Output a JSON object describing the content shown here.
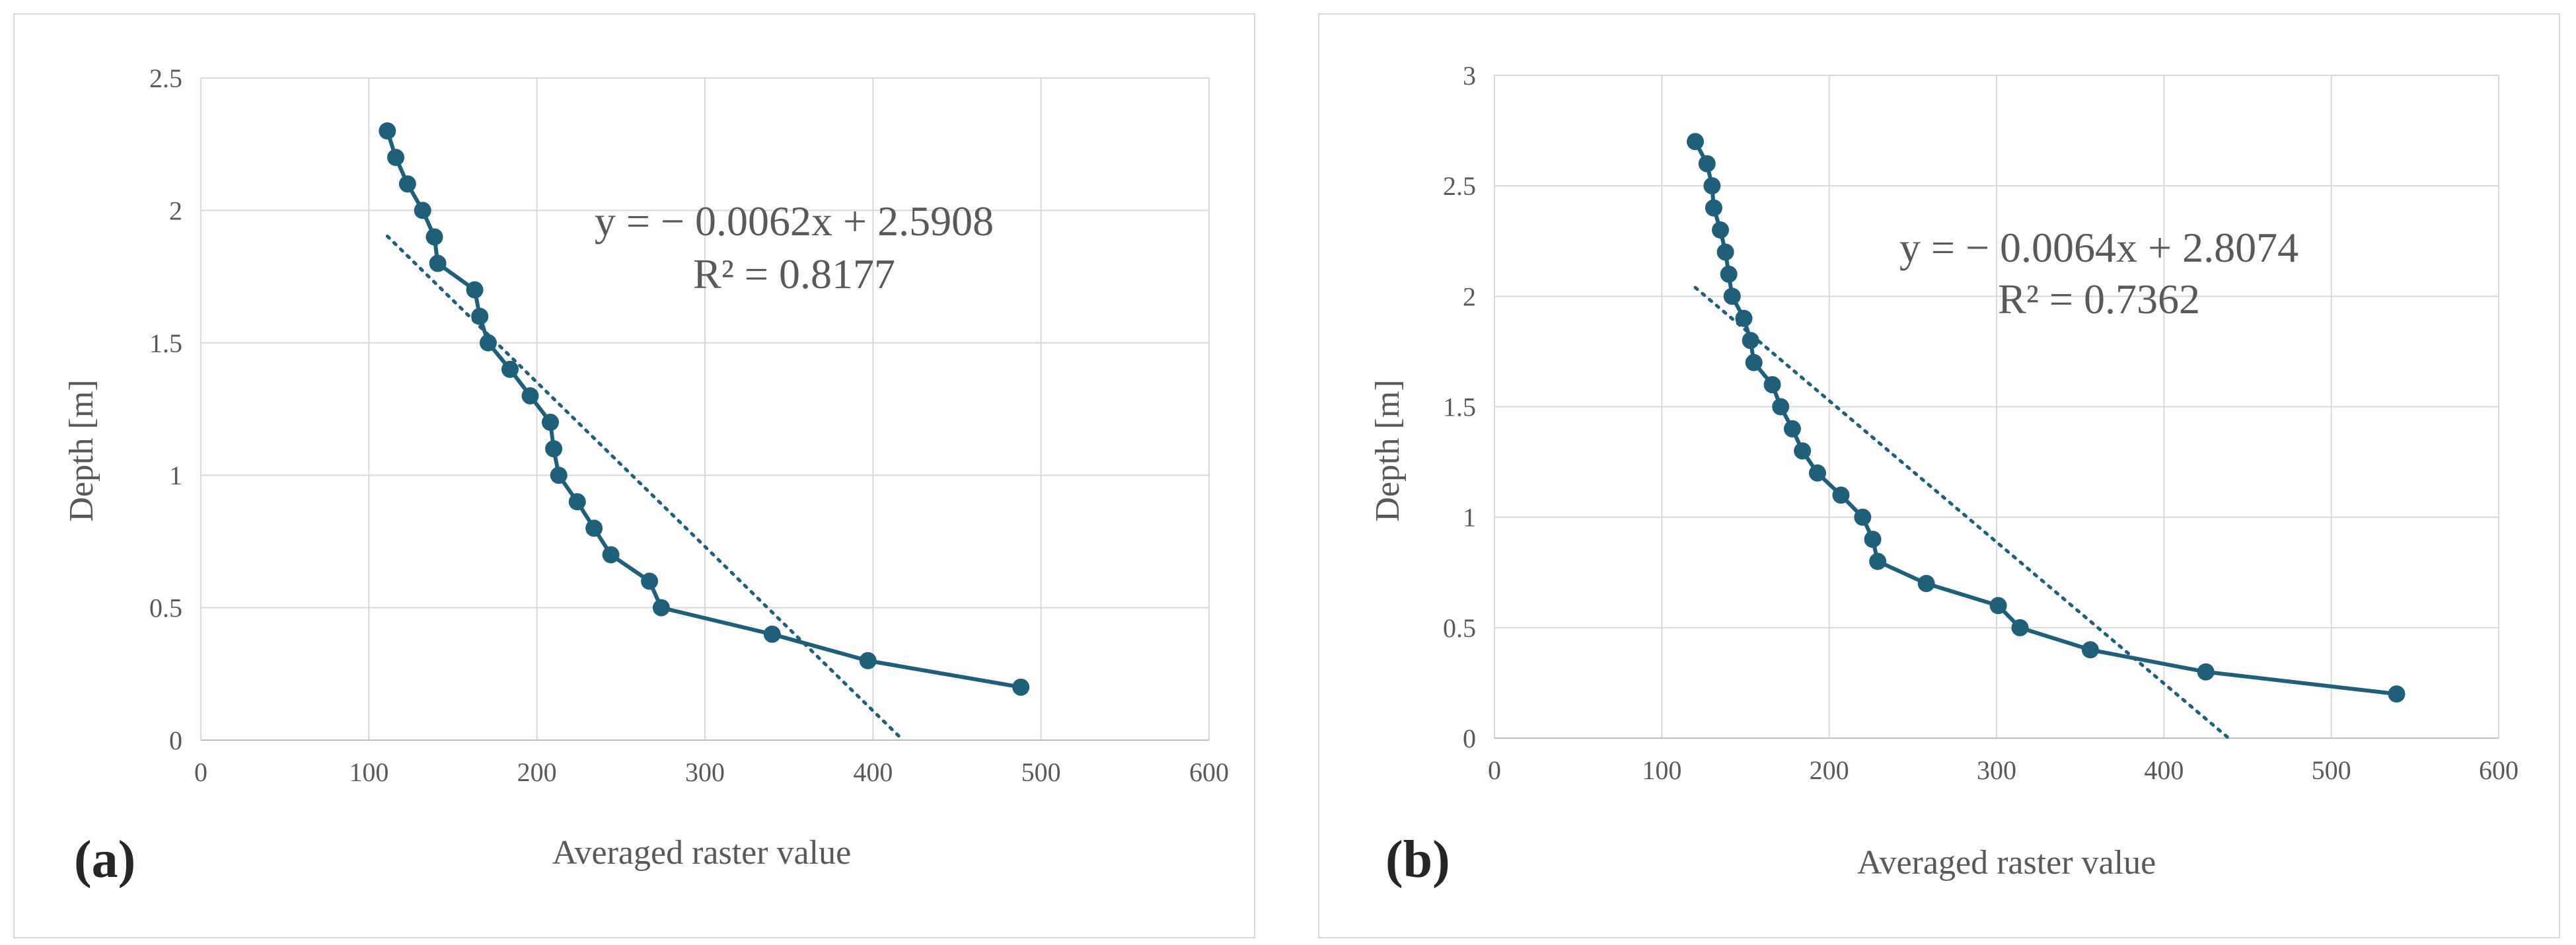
{
  "colors": {
    "series": "#1f5f7a",
    "grid": "#d9d9d9",
    "text": "#595959",
    "border": "#d9d9d9"
  },
  "chart_data": [
    {
      "type": "line",
      "panel_label": "(a)",
      "xlabel": "Averaged raster value",
      "ylabel": "Depth [m]",
      "xlim": [
        0,
        600
      ],
      "ylim": [
        0,
        2.5
      ],
      "x_ticks": [
        "0",
        "100",
        "200",
        "300",
        "400",
        "500",
        "600"
      ],
      "y_ticks": [
        "0",
        "0.5",
        "1",
        "1.5",
        "2",
        "2.5"
      ],
      "series": [
        {
          "name": "Depth",
          "x": [
            111,
            116,
            123,
            132,
            139,
            141,
            163,
            166,
            171,
            184,
            196,
            208,
            210,
            213,
            224,
            234,
            244,
            267,
            274,
            340,
            397,
            488
          ],
          "y": [
            2.3,
            2.2,
            2.1,
            2.0,
            1.9,
            1.8,
            1.7,
            1.6,
            1.5,
            1.4,
            1.3,
            1.2,
            1.1,
            1.0,
            0.9,
            0.8,
            0.7,
            0.6,
            0.5,
            0.4,
            0.3,
            0.2
          ]
        }
      ],
      "trendline": {
        "slope": -0.0062,
        "intercept": 2.5908,
        "x_range": [
          111,
          418
        ]
      },
      "equation": "y = − 0.0062x + 2.5908",
      "r_squared": "R² = 0.8177"
    },
    {
      "type": "line",
      "panel_label": "(b)",
      "xlabel": "Averaged raster value",
      "ylabel": "Depth [m]",
      "xlim": [
        0,
        600
      ],
      "ylim": [
        0,
        3
      ],
      "x_ticks": [
        "0",
        "100",
        "200",
        "300",
        "400",
        "500",
        "600"
      ],
      "y_ticks": [
        "0",
        "0.5",
        "1",
        "1.5",
        "2",
        "2.5",
        "3"
      ],
      "series": [
        {
          "name": "Depth",
          "x": [
            120,
            127,
            130,
            131,
            135,
            138,
            140,
            142,
            149,
            153,
            155,
            166,
            171,
            178,
            184,
            193,
            207,
            220,
            226,
            229,
            258,
            301,
            314,
            356,
            425,
            539
          ],
          "y": [
            2.7,
            2.6,
            2.5,
            2.4,
            2.3,
            2.2,
            2.1,
            2.0,
            1.9,
            1.8,
            1.7,
            1.6,
            1.5,
            1.4,
            1.3,
            1.2,
            1.1,
            1.0,
            0.9,
            0.8,
            0.7,
            0.6,
            0.5,
            0.4,
            0.3,
            0.2
          ]
        }
      ],
      "trendline": {
        "slope": -0.0064,
        "intercept": 2.8074,
        "x_range": [
          120,
          438
        ]
      },
      "equation": "y = − 0.0064x + 2.8074",
      "r_squared": "R² = 0.7362"
    }
  ]
}
